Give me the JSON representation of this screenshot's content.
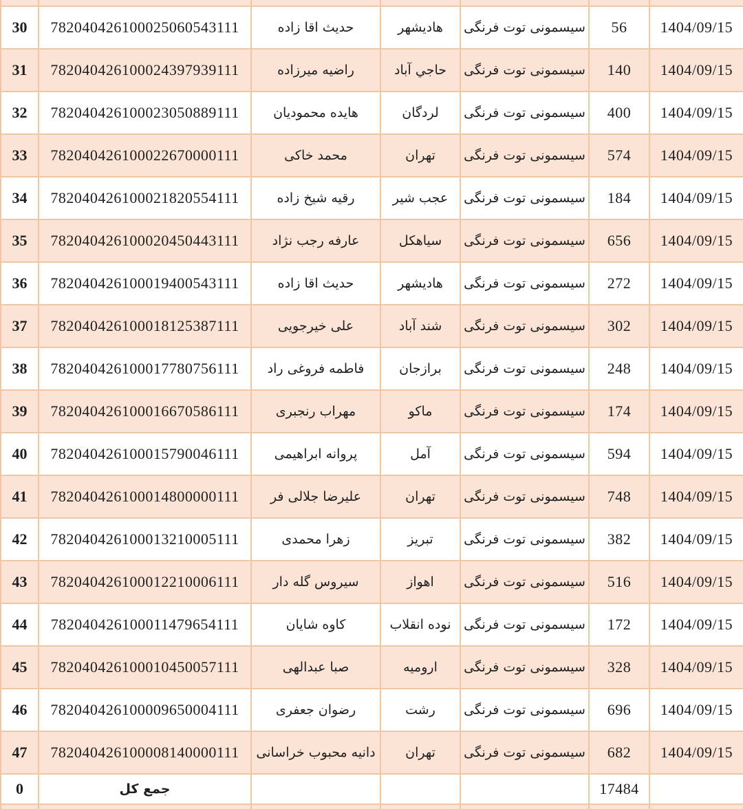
{
  "document": {
    "type": "shipment-report-table",
    "language": "fa",
    "date_repeated": "1404/09/15",
    "product_repeated": "سیسمونی توت فرنگی"
  },
  "colors": {
    "row_shade": "#fbe4d6",
    "border": "#f1c6a2",
    "text": "#1f1f1f"
  },
  "table": {
    "columns": [
      {
        "key": "no",
        "name": "row-number"
      },
      {
        "key": "code",
        "name": "tracking-code"
      },
      {
        "key": "name",
        "name": "recipient-name"
      },
      {
        "key": "city",
        "name": "city"
      },
      {
        "key": "product",
        "name": "product"
      },
      {
        "key": "qty",
        "name": "quantity"
      },
      {
        "key": "date",
        "name": "date"
      }
    ],
    "rows": [
      {
        "no": "30",
        "code": "782040426100025060543111",
        "name": "حدیث اقا زاده",
        "city": "هادیشهر",
        "product": "سیسمونی توت فرنگی",
        "qty": "56",
        "date": "1404/09/15"
      },
      {
        "no": "31",
        "code": "782040426100024397939111",
        "name": "راضیه میرزاده",
        "city": "حاجي آباد",
        "product": "سیسمونی توت فرنگی",
        "qty": "140",
        "date": "1404/09/15"
      },
      {
        "no": "32",
        "code": "782040426100023050889111",
        "name": "هایده محمودیان",
        "city": "لردگان",
        "product": "سیسمونی توت فرنگی",
        "qty": "400",
        "date": "1404/09/15"
      },
      {
        "no": "33",
        "code": "782040426100022670000111",
        "name": "محمد خاکی",
        "city": "تهران",
        "product": "سیسمونی توت فرنگی",
        "qty": "574",
        "date": "1404/09/15"
      },
      {
        "no": "34",
        "code": "782040426100021820554111",
        "name": "رقیه شیخ زاده",
        "city": "عجب شیر",
        "product": "سیسمونی توت فرنگی",
        "qty": "184",
        "date": "1404/09/15"
      },
      {
        "no": "35",
        "code": "782040426100020450443111",
        "name": "عارفه رجب نژاد",
        "city": "سیاهکل",
        "product": "سیسمونی توت فرنگی",
        "qty": "656",
        "date": "1404/09/15"
      },
      {
        "no": "36",
        "code": "782040426100019400543111",
        "name": "حدیث اقا زاده",
        "city": "هادیشهر",
        "product": "سیسمونی توت فرنگی",
        "qty": "272",
        "date": "1404/09/15"
      },
      {
        "no": "37",
        "code": "782040426100018125387111",
        "name": "علی خیرجویی",
        "city": "شند آباد",
        "product": "سیسمونی توت فرنگی",
        "qty": "302",
        "date": "1404/09/15"
      },
      {
        "no": "38",
        "code": "782040426100017780756111",
        "name": "فاطمه فروغی راد",
        "city": "برازجان",
        "product": "سیسمونی توت فرنگی",
        "qty": "248",
        "date": "1404/09/15"
      },
      {
        "no": "39",
        "code": "782040426100016670586111",
        "name": "مهراب رنجبری",
        "city": "ماکو",
        "product": "سیسمونی توت فرنگی",
        "qty": "174",
        "date": "1404/09/15"
      },
      {
        "no": "40",
        "code": "782040426100015790046111",
        "name": "پروانه ابراهیمی",
        "city": "آمل",
        "product": "سیسمونی توت فرنگی",
        "qty": "594",
        "date": "1404/09/15"
      },
      {
        "no": "41",
        "code": "782040426100014800000111",
        "name": "علیرضا جلالی فر",
        "city": "تهران",
        "product": "سیسمونی توت فرنگی",
        "qty": "748",
        "date": "1404/09/15"
      },
      {
        "no": "42",
        "code": "782040426100013210005111",
        "name": "زهرا محمدی",
        "city": "تبریز",
        "product": "سیسمونی توت فرنگی",
        "qty": "382",
        "date": "1404/09/15"
      },
      {
        "no": "43",
        "code": "782040426100012210006111",
        "name": "سیروس گله دار",
        "city": "اهواز",
        "product": "سیسمونی توت فرنگی",
        "qty": "516",
        "date": "1404/09/15"
      },
      {
        "no": "44",
        "code": "782040426100011479654111",
        "name": "کاوه شایان",
        "city": "نوده انقلاب",
        "product": "سیسمونی توت فرنگی",
        "qty": "172",
        "date": "1404/09/15"
      },
      {
        "no": "45",
        "code": "782040426100010450057111",
        "name": "صبا عبدالهی",
        "city": "ارومیه",
        "product": "سیسمونی توت فرنگی",
        "qty": "328",
        "date": "1404/09/15"
      },
      {
        "no": "46",
        "code": "782040426100009650004111",
        "name": "رضوان جعفری",
        "city": "رشت",
        "product": "سیسمونی توت فرنگی",
        "qty": "696",
        "date": "1404/09/15"
      },
      {
        "no": "47",
        "code": "782040426100008140000111",
        "name": "دانیه محبوب خراسانی",
        "city": "تهران",
        "product": "سیسمونی توت فرنگی",
        "qty": "682",
        "date": "1404/09/15"
      }
    ],
    "total": {
      "no": "0",
      "label": "جمع کل",
      "qty": "17484"
    }
  }
}
